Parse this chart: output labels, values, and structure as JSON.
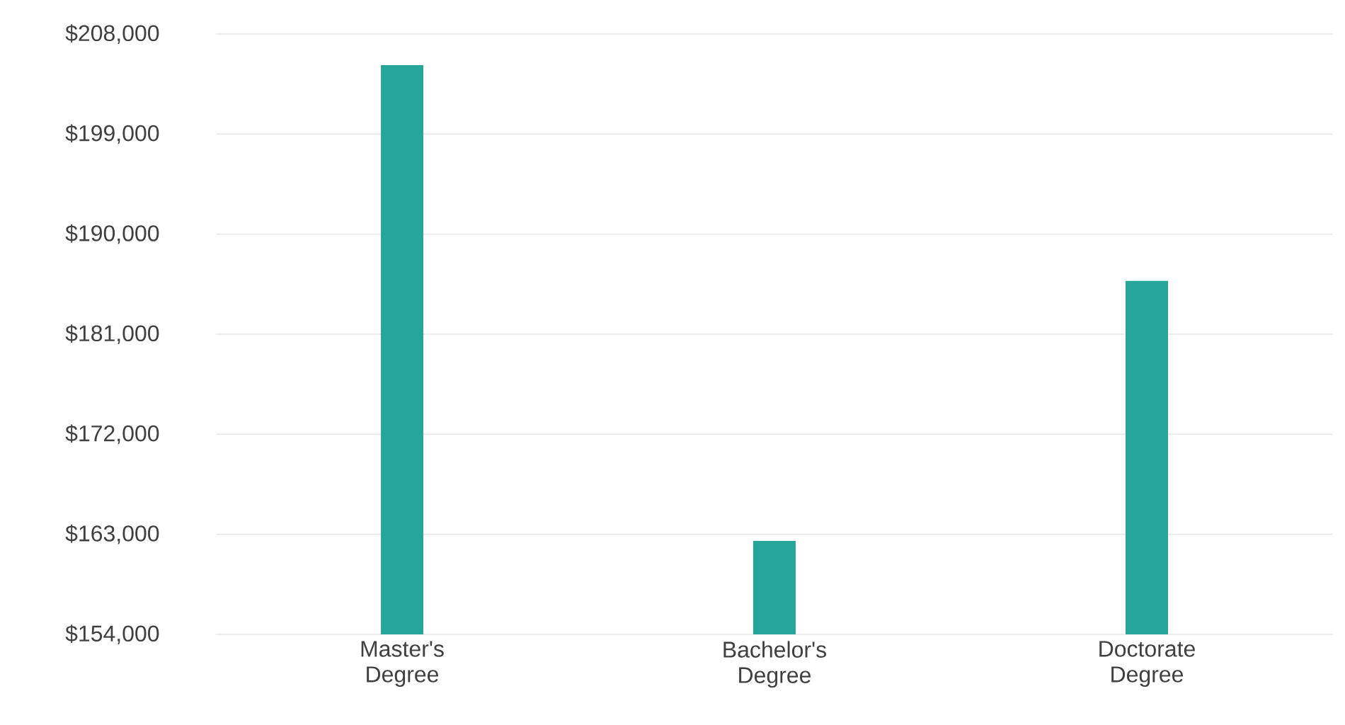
{
  "chart_data": {
    "type": "bar",
    "categories": [
      "Master's Degree",
      "Bachelor's Degree",
      "Doctorate Degree"
    ],
    "values": [
      205200,
      162400,
      185800
    ],
    "color": "#26a69a",
    "ylim": [
      154000,
      208000
    ],
    "yticks": [
      {
        "value": 154000,
        "label": "$154,000"
      },
      {
        "value": 163000,
        "label": "$163,000"
      },
      {
        "value": 172000,
        "label": "$172,000"
      },
      {
        "value": 181000,
        "label": "$181,000"
      },
      {
        "value": 190000,
        "label": "$190,000"
      },
      {
        "value": 199000,
        "label": "$199,000"
      },
      {
        "value": 208000,
        "label": "$208,000"
      }
    ],
    "grid": "y"
  }
}
